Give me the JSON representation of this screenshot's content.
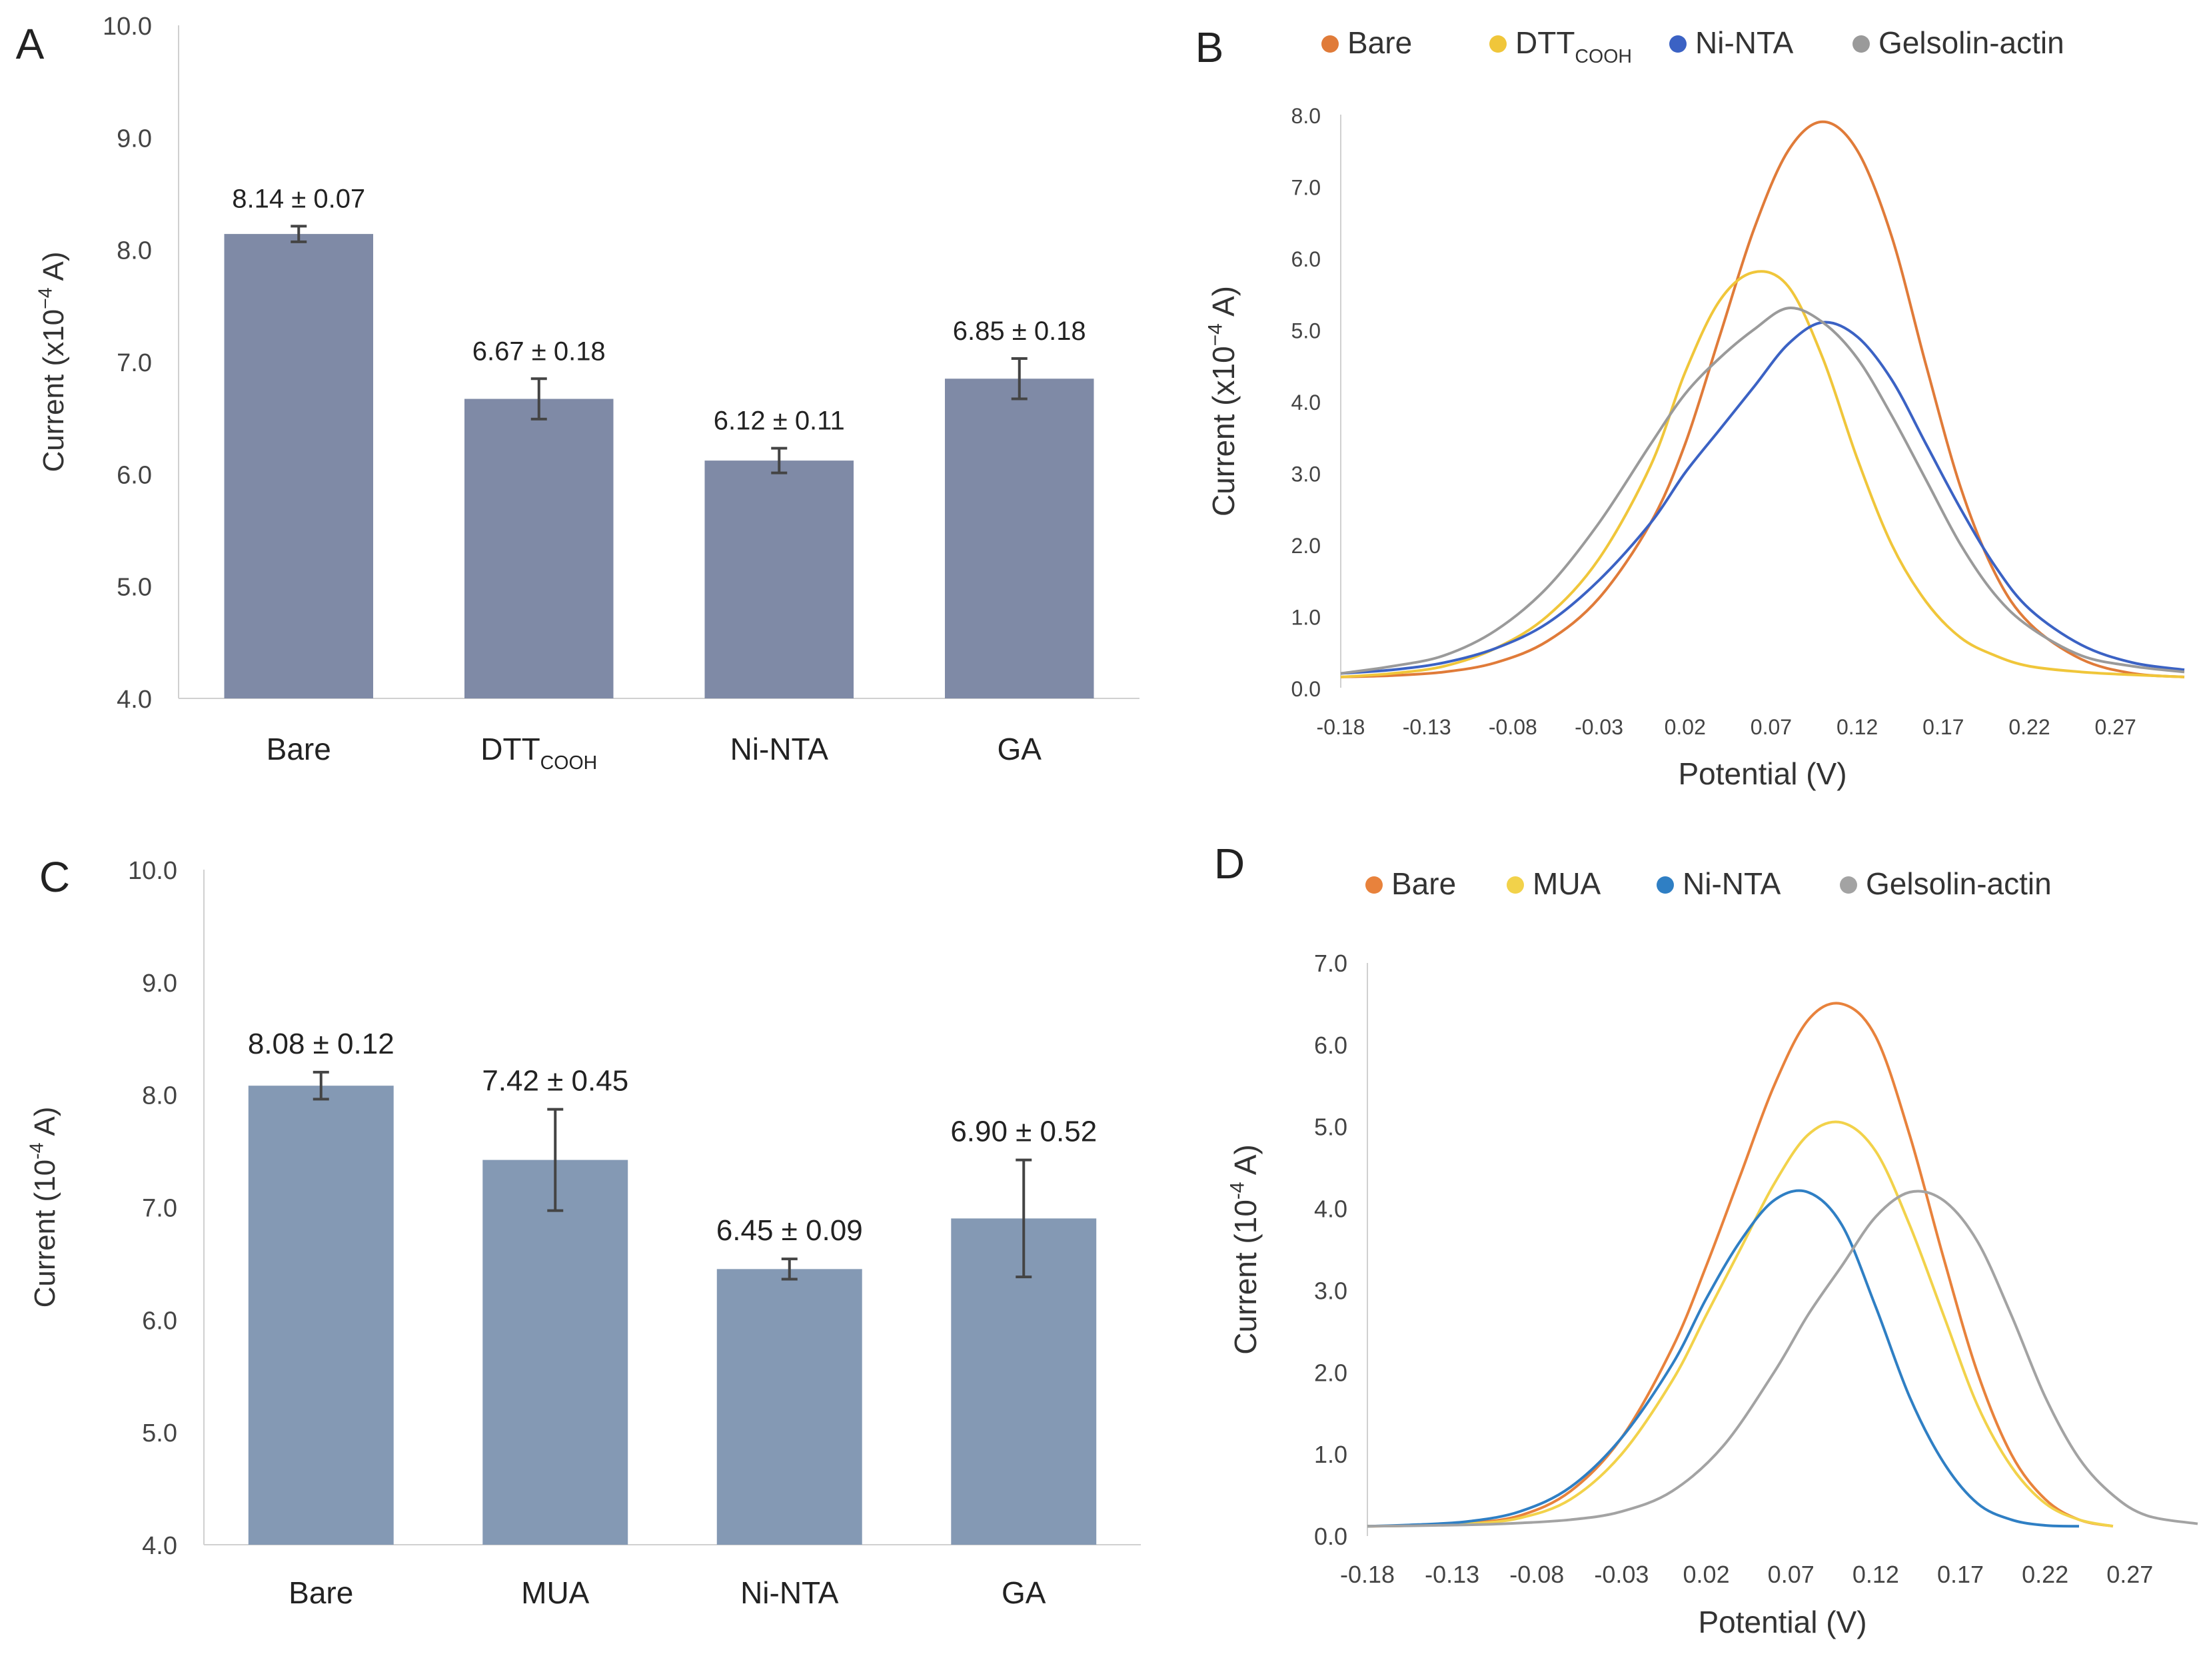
{
  "panels": [
    {
      "letter": "A"
    },
    {
      "letter": "B"
    },
    {
      "letter": "C"
    },
    {
      "letter": "D"
    }
  ],
  "chart_data": [
    {
      "panel": "A",
      "type": "bar",
      "categories": [
        "Bare",
        "DTT",
        "Ni-NTA",
        "GA"
      ],
      "category_subscripts": [
        "",
        "COOH",
        "",
        ""
      ],
      "values": [
        8.14,
        6.67,
        6.12,
        6.85
      ],
      "errors": [
        0.07,
        0.18,
        0.11,
        0.18
      ],
      "data_labels": [
        "8.14 ± 0.07",
        "6.67 ± 0.18",
        "6.12 ± 0.11",
        "6.85 ± 0.18"
      ],
      "ylabel_prefix": "Current (x10",
      "ylabel_exp": "−4",
      "ylabel_suffix": " A)",
      "ylim": [
        4.0,
        10.0
      ],
      "yticks": [
        "4.0",
        "5.0",
        "6.0",
        "7.0",
        "8.0",
        "9.0",
        "10.0"
      ],
      "bar_color": "#7f8aa6"
    },
    {
      "panel": "B",
      "type": "line",
      "xlabel": "Potential (V)",
      "ylabel_prefix": "Current (x10",
      "ylabel_exp": "−4",
      "ylabel_suffix": " A)",
      "xlim": [
        -0.18,
        0.31
      ],
      "ylim": [
        0.0,
        8.0
      ],
      "xticks": [
        "-0.18",
        "-0.13",
        "-0.08",
        "-0.03",
        "0.02",
        "0.07",
        "0.12",
        "0.17",
        "0.22",
        "0.27"
      ],
      "yticks": [
        "0.0",
        "1.0",
        "2.0",
        "3.0",
        "4.0",
        "5.0",
        "6.0",
        "7.0",
        "8.0"
      ],
      "series": [
        {
          "name": "Bare",
          "subscript": "",
          "color": "#e07b39",
          "x": [
            -0.18,
            -0.15,
            -0.12,
            -0.09,
            -0.06,
            -0.03,
            0.0,
            0.02,
            0.04,
            0.06,
            0.08,
            0.1,
            0.12,
            0.14,
            0.16,
            0.18,
            0.2,
            0.22,
            0.25,
            0.28,
            0.31
          ],
          "y": [
            0.15,
            0.17,
            0.22,
            0.35,
            0.65,
            1.25,
            2.3,
            3.4,
            4.9,
            6.4,
            7.5,
            7.9,
            7.5,
            6.3,
            4.5,
            2.8,
            1.6,
            0.9,
            0.4,
            0.2,
            0.15
          ]
        },
        {
          "name": "DTT",
          "subscript": "COOH",
          "color": "#f0c63a",
          "x": [
            -0.18,
            -0.15,
            -0.12,
            -0.09,
            -0.06,
            -0.03,
            0.0,
            0.02,
            0.04,
            0.06,
            0.08,
            0.1,
            0.12,
            0.14,
            0.16,
            0.18,
            0.2,
            0.22,
            0.25,
            0.28,
            0.31
          ],
          "y": [
            0.15,
            0.2,
            0.3,
            0.55,
            1.0,
            1.8,
            3.1,
            4.4,
            5.4,
            5.8,
            5.6,
            4.6,
            3.2,
            2.0,
            1.2,
            0.7,
            0.45,
            0.3,
            0.22,
            0.18,
            0.15
          ]
        },
        {
          "name": "Ni-NTA",
          "subscript": "",
          "color": "#3b62c4",
          "x": [
            -0.18,
            -0.15,
            -0.12,
            -0.09,
            -0.06,
            -0.03,
            0.0,
            0.02,
            0.04,
            0.06,
            0.08,
            0.1,
            0.12,
            0.14,
            0.16,
            0.18,
            0.2,
            0.22,
            0.25,
            0.28,
            0.31
          ],
          "y": [
            0.2,
            0.25,
            0.35,
            0.55,
            0.9,
            1.5,
            2.3,
            3.0,
            3.6,
            4.2,
            4.8,
            5.1,
            4.9,
            4.3,
            3.4,
            2.5,
            1.7,
            1.1,
            0.6,
            0.35,
            0.25
          ]
        },
        {
          "name": "Gelsolin-actin",
          "subscript": "",
          "color": "#9a9a9a",
          "x": [
            -0.18,
            -0.15,
            -0.12,
            -0.09,
            -0.06,
            -0.03,
            0.0,
            0.02,
            0.04,
            0.06,
            0.08,
            0.1,
            0.12,
            0.14,
            0.16,
            0.18,
            0.2,
            0.22,
            0.25,
            0.28,
            0.31
          ],
          "y": [
            0.2,
            0.3,
            0.45,
            0.8,
            1.4,
            2.3,
            3.4,
            4.1,
            4.6,
            5.0,
            5.3,
            5.1,
            4.6,
            3.8,
            2.9,
            2.0,
            1.3,
            0.85,
            0.45,
            0.3,
            0.22
          ]
        }
      ]
    },
    {
      "panel": "C",
      "type": "bar",
      "categories": [
        "Bare",
        "MUA",
        "Ni-NTA",
        "GA"
      ],
      "category_subscripts": [
        "",
        "",
        "",
        ""
      ],
      "values": [
        8.08,
        7.42,
        6.45,
        6.9
      ],
      "errors": [
        0.12,
        0.45,
        0.09,
        0.52
      ],
      "data_labels": [
        "8.08 ± 0.12",
        "7.42 ± 0.45",
        "6.45 ± 0.09",
        "6.90 ± 0.52"
      ],
      "ylabel_prefix": "Current (10",
      "ylabel_exp": "-4",
      "ylabel_suffix": " A)",
      "ylim": [
        4.0,
        10.0
      ],
      "yticks": [
        "4.0",
        "5.0",
        "6.0",
        "7.0",
        "8.0",
        "9.0",
        "10.0"
      ],
      "bar_color": "#8499b4"
    },
    {
      "panel": "D",
      "type": "line",
      "xlabel": "Potential (V)",
      "ylabel_prefix": "Current (10",
      "ylabel_exp": "-4",
      "ylabel_suffix": " A)",
      "xlim": [
        -0.18,
        0.31
      ],
      "ylim": [
        0.0,
        7.0
      ],
      "xticks": [
        "-0.18",
        "-0.13",
        "-0.08",
        "-0.03",
        "0.02",
        "0.07",
        "0.12",
        "0.17",
        "0.22",
        "0.27"
      ],
      "yticks": [
        "0.0",
        "1.0",
        "2.0",
        "3.0",
        "4.0",
        "5.0",
        "6.0",
        "7.0"
      ],
      "series": [
        {
          "name": "Bare",
          "subscript": "",
          "color": "#e8823c",
          "x": [
            -0.18,
            -0.15,
            -0.12,
            -0.09,
            -0.06,
            -0.03,
            0.0,
            0.02,
            0.04,
            0.06,
            0.08,
            0.1,
            0.12,
            0.14,
            0.16,
            0.18,
            0.2,
            0.22,
            0.24,
            0.26
          ],
          "y": [
            0.12,
            0.13,
            0.16,
            0.25,
            0.55,
            1.2,
            2.3,
            3.3,
            4.4,
            5.5,
            6.3,
            6.5,
            6.1,
            4.9,
            3.4,
            2.0,
            1.0,
            0.45,
            0.2,
            0.12
          ]
        },
        {
          "name": "MUA",
          "subscript": "",
          "color": "#f2d24a",
          "x": [
            -0.18,
            -0.15,
            -0.12,
            -0.09,
            -0.06,
            -0.03,
            0.0,
            0.02,
            0.04,
            0.06,
            0.08,
            0.1,
            0.12,
            0.14,
            0.16,
            0.18,
            0.2,
            0.22,
            0.24,
            0.26
          ],
          "y": [
            0.12,
            0.13,
            0.15,
            0.22,
            0.45,
            1.0,
            1.9,
            2.7,
            3.5,
            4.3,
            4.9,
            5.05,
            4.7,
            3.8,
            2.7,
            1.6,
            0.85,
            0.4,
            0.2,
            0.12
          ]
        },
        {
          "name": "Ni-NTA",
          "subscript": "",
          "color": "#2f7fc4",
          "x": [
            -0.18,
            -0.15,
            -0.12,
            -0.09,
            -0.06,
            -0.03,
            0.0,
            0.02,
            0.04,
            0.06,
            0.08,
            0.1,
            0.12,
            0.14,
            0.16,
            0.18,
            0.2,
            0.22,
            0.24
          ],
          "y": [
            0.12,
            0.14,
            0.18,
            0.3,
            0.6,
            1.2,
            2.1,
            2.9,
            3.6,
            4.1,
            4.2,
            3.8,
            2.8,
            1.7,
            0.9,
            0.4,
            0.2,
            0.13,
            0.12
          ]
        },
        {
          "name": "Gelsolin-actin",
          "subscript": "",
          "color": "#a3a3a3",
          "x": [
            -0.18,
            -0.14,
            -0.1,
            -0.06,
            -0.03,
            0.0,
            0.03,
            0.06,
            0.08,
            0.1,
            0.12,
            0.14,
            0.16,
            0.18,
            0.2,
            0.22,
            0.24,
            0.26,
            0.28,
            0.31
          ],
          "y": [
            0.12,
            0.13,
            0.15,
            0.2,
            0.3,
            0.55,
            1.1,
            2.0,
            2.7,
            3.3,
            3.9,
            4.2,
            4.1,
            3.6,
            2.7,
            1.7,
            0.95,
            0.5,
            0.25,
            0.15
          ]
        }
      ]
    }
  ]
}
